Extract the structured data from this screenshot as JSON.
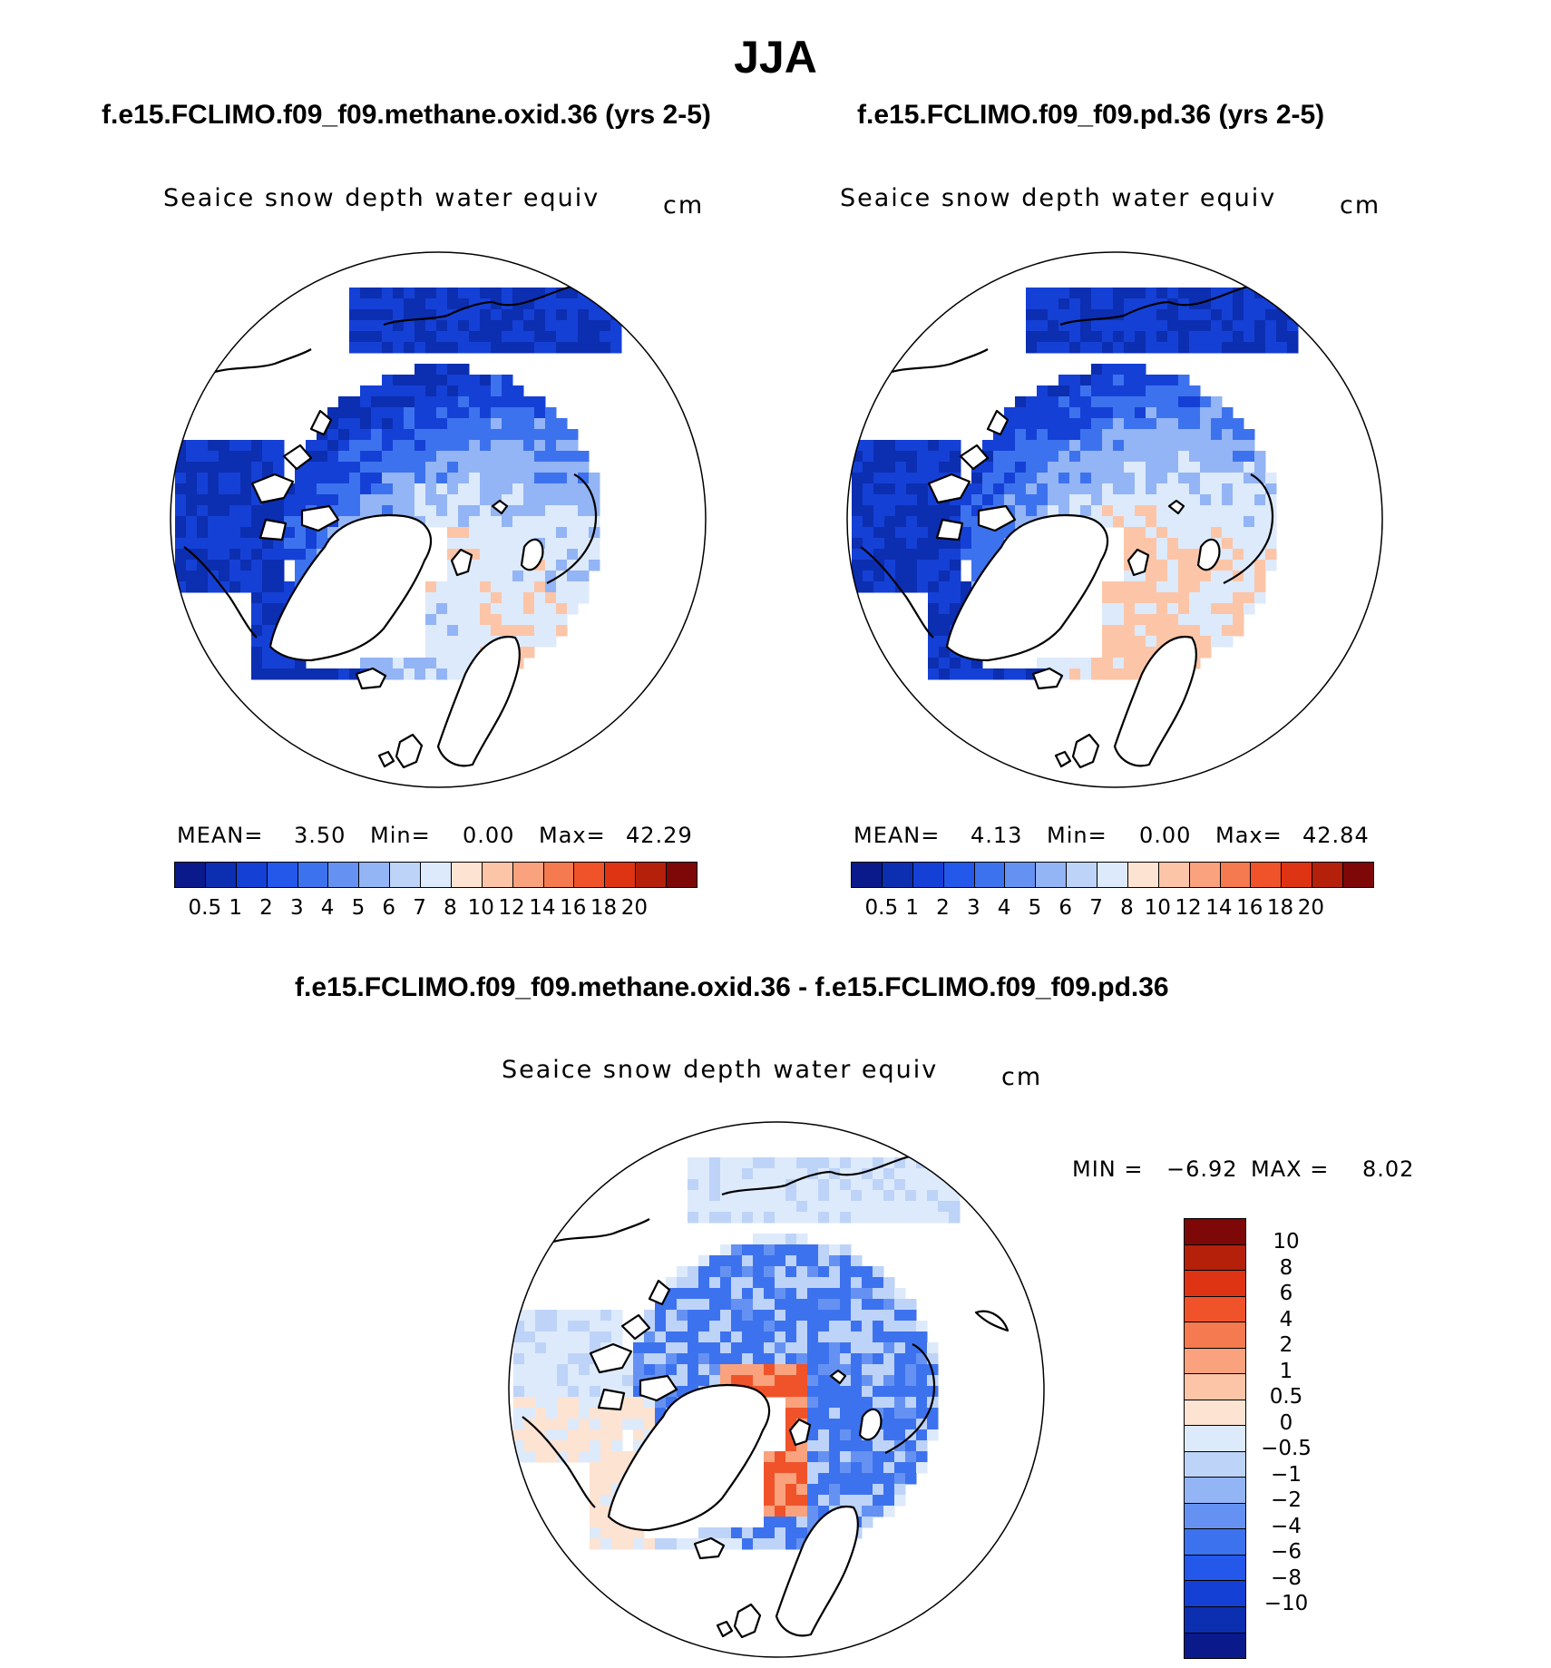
{
  "page": {
    "title": "JJA"
  },
  "panels": [
    {
      "title": "f.e15.FCLIMO.f09_f09.methane.oxid.36 (yrs 2-5)",
      "variable": "Seaice  snow  depth  water  equiv",
      "units": "cm",
      "stats": {
        "mean_label": "MEAN=",
        "mean": "3.50",
        "min_label": "Min=",
        "min": "0.00",
        "max_label": "Max=",
        "max": "42.29"
      }
    },
    {
      "title": "f.e15.FCLIMO.f09_f09.pd.36 (yrs 2-5)",
      "variable": "Seaice  snow  depth  water  equiv",
      "units": "cm",
      "stats": {
        "mean_label": "MEAN=",
        "mean": "4.13",
        "min_label": "Min=",
        "min": "0.00",
        "max_label": "Max=",
        "max": "42.84"
      }
    }
  ],
  "diff_panel": {
    "title": "f.e15.FCLIMO.f09_f09.methane.oxid.36 - f.e15.FCLIMO.f09_f09.pd.36",
    "variable": "Seaice  snow  depth  water  equiv",
    "units": "cm",
    "stats": {
      "min_label": "MIN =",
      "min": "−6.92",
      "max_label": "MAX =",
      "max": "8.02"
    }
  },
  "colorbar_abs": {
    "colors": [
      "#0a1a8a",
      "#0c2eb0",
      "#1540d6",
      "#2458ea",
      "#3d72ee",
      "#6592f2",
      "#93b4f5",
      "#bed3f8",
      "#ddeafb",
      "#fde3d2",
      "#fcc5a8",
      "#f9a27d",
      "#f57a4f",
      "#f0532a",
      "#de3414",
      "#b4200a",
      "#7e0707"
    ],
    "labels": [
      "0.5",
      "1",
      "2",
      "3",
      "4",
      "5",
      "6",
      "7",
      "8",
      "10",
      "12",
      "14",
      "16",
      "18",
      "20"
    ]
  },
  "colorbar_diff": {
    "colors_top_to_bottom": [
      "#7e0707",
      "#b4200a",
      "#de3414",
      "#f0532a",
      "#f57a4f",
      "#f9a27d",
      "#fcc5a8",
      "#fde3d2",
      "#ddeafb",
      "#bed3f8",
      "#93b4f5",
      "#6592f2",
      "#3d72ee",
      "#2458ea",
      "#1540d6",
      "#0c2eb0",
      "#0a1a8a"
    ],
    "labels_top_to_bottom": [
      "10",
      "8",
      "6",
      "4",
      "2",
      "1",
      "0.5",
      "0",
      "−0.5",
      "−1",
      "−2",
      "−4",
      "−6",
      "−8",
      "−10"
    ]
  },
  "map_field": {
    "panel1_colors": [
      "#0c2eb0",
      "#1540d6",
      "#3d72ee",
      "#93b4f5",
      "#ddeafb",
      "#fcc5a8",
      "#f57a4f",
      "#f0532a"
    ],
    "panel2_colors": [
      "#0c2eb0",
      "#1540d6",
      "#3d72ee",
      "#93b4f5",
      "#ddeafb",
      "#fcc5a8",
      "#f9a27d",
      "#f57a4f"
    ],
    "diff_colors": [
      "#93b4f5",
      "#6592f2",
      "#3d72ee",
      "#bed3f8",
      "#ddeafb",
      "#fde3d2",
      "#f9a27d",
      "#f0532a"
    ]
  }
}
